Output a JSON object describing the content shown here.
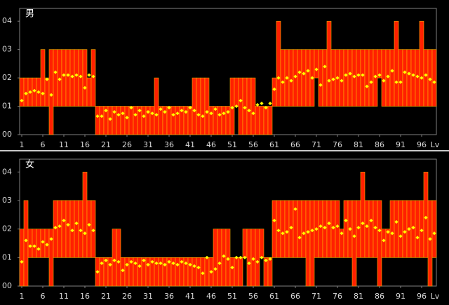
{
  "chart_data": [
    {
      "type": "range_bar",
      "title": "男",
      "x": [
        1,
        2,
        3,
        4,
        5,
        6,
        7,
        8,
        9,
        10,
        11,
        12,
        13,
        14,
        15,
        16,
        17,
        18,
        19,
        20,
        21,
        22,
        23,
        24,
        25,
        26,
        27,
        28,
        29,
        30,
        31,
        32,
        33,
        34,
        35,
        36,
        37,
        38,
        39,
        40,
        41,
        42,
        43,
        44,
        45,
        46,
        47,
        48,
        49,
        50,
        51,
        52,
        53,
        54,
        55,
        56,
        57,
        58,
        59,
        60,
        61,
        62,
        63,
        64,
        65,
        66,
        67,
        68,
        69,
        70,
        71,
        72,
        73,
        74,
        75,
        76,
        77,
        78,
        79,
        80,
        81,
        82,
        83,
        84,
        85,
        86,
        87,
        88,
        89,
        90,
        91,
        92,
        93,
        94,
        95,
        96,
        97,
        98,
        99
      ],
      "low": [
        1,
        1,
        1,
        1,
        1,
        1,
        1,
        0,
        1,
        1,
        1,
        1,
        1,
        1,
        1,
        1,
        1,
        1,
        0,
        0,
        0,
        0,
        0,
        0,
        0,
        0,
        0,
        0,
        0,
        0,
        0,
        0,
        0,
        0,
        0,
        0,
        0,
        0,
        0,
        0,
        0,
        0,
        0,
        0,
        0,
        0,
        0,
        0,
        0,
        0,
        0,
        1,
        0,
        0,
        0,
        0,
        0,
        0,
        0,
        0,
        1,
        1,
        1,
        1,
        1,
        1,
        1,
        1,
        1,
        1,
        2,
        1,
        1,
        1,
        1,
        1,
        1,
        1,
        1,
        1,
        1,
        1,
        1,
        1,
        1,
        2,
        1,
        1,
        1,
        1,
        1,
        1,
        1,
        1,
        1,
        1,
        1,
        1,
        1
      ],
      "high": [
        2,
        2,
        2,
        2,
        2,
        3,
        2,
        3,
        3,
        3,
        3,
        3,
        3,
        3,
        3,
        3,
        2,
        3,
        1,
        1,
        1,
        1,
        1,
        1,
        1,
        1,
        1,
        1,
        1,
        1,
        1,
        1,
        2,
        1,
        1,
        1,
        1,
        1,
        1,
        1,
        1,
        2,
        2,
        2,
        2,
        1,
        1,
        1,
        1,
        1,
        2,
        2,
        2,
        2,
        2,
        2,
        1,
        1,
        1,
        1,
        2,
        4,
        3,
        3,
        3,
        3,
        3,
        3,
        3,
        3,
        3,
        3,
        3,
        4,
        3,
        3,
        3,
        3,
        3,
        3,
        3,
        3,
        3,
        3,
        3,
        3,
        3,
        3,
        3,
        4,
        3,
        3,
        3,
        3,
        3,
        4,
        3,
        3,
        3
      ],
      "average": [
        1.2,
        1.45,
        1.5,
        1.55,
        1.5,
        1.45,
        1.95,
        1.4,
        2.2,
        1.95,
        2.1,
        2.1,
        2.05,
        2.1,
        2.05,
        1.65,
        2.1,
        2.05,
        0.65,
        0.65,
        0.85,
        0.55,
        0.8,
        0.7,
        0.75,
        0.6,
        0.95,
        0.7,
        0.85,
        0.65,
        0.8,
        0.75,
        0.7,
        0.9,
        0.8,
        0.95,
        0.7,
        0.75,
        0.85,
        0.8,
        0.95,
        0.85,
        0.7,
        0.65,
        0.8,
        0.75,
        0.9,
        0.7,
        0.75,
        0.8,
        0.95,
        1.0,
        1.2,
        0.95,
        0.85,
        0.75,
        1.05,
        1.1,
        0.95,
        1.1,
        1.6,
        2.0,
        1.85,
        2.0,
        1.9,
        2.05,
        2.2,
        2.15,
        2.25,
        2.0,
        2.3,
        1.75,
        2.4,
        1.9,
        1.95,
        2.0,
        1.9,
        2.1,
        2.15,
        2.05,
        2.1,
        2.1,
        1.7,
        1.85,
        2.05,
        2.1,
        1.9,
        2.05,
        2.25,
        1.85,
        1.85,
        2.2,
        2.15,
        2.1,
        2.05,
        2.0,
        2.1,
        1.95,
        1.85
      ],
      "bar_color": "#ff2000",
      "stripe_color": "#ffb000",
      "average_color": "#ffff00",
      "xlim": [
        0.5,
        99.5
      ],
      "xticks": [
        1,
        6,
        11,
        16,
        21,
        26,
        31,
        36,
        41,
        46,
        51,
        56,
        61,
        66,
        71,
        76,
        81,
        86,
        91,
        96
      ],
      "x_label": "Lv",
      "ylim": [
        0,
        4.45
      ],
      "yticks": [
        {
          "value": 0,
          "label": "00"
        },
        {
          "value": 1,
          "label": "01"
        },
        {
          "value": 2,
          "label": "02"
        },
        {
          "value": 3,
          "label": "03"
        },
        {
          "value": 4,
          "label": "04"
        }
      ]
    },
    {
      "type": "range_bar",
      "title": "女",
      "x": [
        1,
        2,
        3,
        4,
        5,
        6,
        7,
        8,
        9,
        10,
        11,
        12,
        13,
        14,
        15,
        16,
        17,
        18,
        19,
        20,
        21,
        22,
        23,
        24,
        25,
        26,
        27,
        28,
        29,
        30,
        31,
        32,
        33,
        34,
        35,
        36,
        37,
        38,
        39,
        40,
        41,
        42,
        43,
        44,
        45,
        46,
        47,
        48,
        49,
        50,
        51,
        52,
        53,
        54,
        55,
        56,
        57,
        58,
        59,
        60,
        61,
        62,
        63,
        64,
        65,
        66,
        67,
        68,
        69,
        70,
        71,
        72,
        73,
        74,
        75,
        76,
        77,
        78,
        79,
        80,
        81,
        82,
        83,
        84,
        85,
        86,
        87,
        88,
        89,
        90,
        91,
        92,
        93,
        94,
        95,
        96,
        97,
        98,
        99
      ],
      "low": [
        0,
        0,
        1,
        1,
        1,
        1,
        1,
        0,
        1,
        1,
        1,
        1,
        1,
        1,
        1,
        1,
        1,
        1,
        0,
        0,
        0,
        0,
        0,
        0,
        0,
        0,
        0,
        0,
        0,
        0,
        0,
        0,
        0,
        0,
        0,
        0,
        0,
        0,
        0,
        0,
        0,
        0,
        0,
        0,
        0,
        0,
        0,
        0,
        0,
        0,
        0,
        0,
        0,
        1,
        0,
        0,
        0,
        1,
        0,
        0,
        1,
        1,
        1,
        1,
        1,
        1,
        1,
        1,
        0,
        0,
        1,
        1,
        1,
        1,
        1,
        1,
        1,
        1,
        1,
        0,
        1,
        1,
        1,
        1,
        1,
        0,
        1,
        1,
        1,
        1,
        1,
        1,
        1,
        1,
        1,
        1,
        1,
        0,
        1
      ],
      "high": [
        2,
        3,
        2,
        2,
        2,
        2,
        2,
        2,
        3,
        3,
        3,
        3,
        3,
        3,
        3,
        4,
        3,
        3,
        1,
        1,
        1,
        1,
        2,
        2,
        1,
        1,
        1,
        1,
        1,
        1,
        1,
        1,
        1,
        1,
        1,
        1,
        1,
        1,
        1,
        1,
        1,
        1,
        1,
        1,
        1,
        1,
        2,
        2,
        2,
        2,
        1,
        1,
        1,
        2,
        2,
        2,
        2,
        2,
        1,
        1,
        3,
        3,
        3,
        3,
        3,
        3,
        3,
        3,
        3,
        3,
        3,
        3,
        3,
        3,
        3,
        3,
        2,
        3,
        3,
        3,
        3,
        4,
        3,
        3,
        3,
        3,
        2,
        2,
        3,
        3,
        3,
        3,
        3,
        3,
        3,
        3,
        4,
        3,
        3
      ],
      "average": [
        0.85,
        1.6,
        1.4,
        1.4,
        1.3,
        1.55,
        1.45,
        1.65,
        2.05,
        2.1,
        2.3,
        2.15,
        1.95,
        2.2,
        1.95,
        1.85,
        2.15,
        1.95,
        0.5,
        0.8,
        0.9,
        0.75,
        0.9,
        0.85,
        0.55,
        0.75,
        0.85,
        0.8,
        0.7,
        0.9,
        0.75,
        0.85,
        0.8,
        0.8,
        0.75,
        0.85,
        0.8,
        0.75,
        0.85,
        0.8,
        0.75,
        0.7,
        0.65,
        0.45,
        1.0,
        0.5,
        0.6,
        0.8,
        1.05,
        0.95,
        0.65,
        1.0,
        1.0,
        1.0,
        0.8,
        0.95,
        0.85,
        1.0,
        0.9,
        0.95,
        2.3,
        1.95,
        1.85,
        1.9,
        2.05,
        2.7,
        1.7,
        1.85,
        1.9,
        1.95,
        2.0,
        2.1,
        2.05,
        2.2,
        2.05,
        2.1,
        1.85,
        2.3,
        2.0,
        1.75,
        2.05,
        2.2,
        2.1,
        2.3,
        2.05,
        1.95,
        1.6,
        1.9,
        1.85,
        2.25,
        1.75,
        1.9,
        2.0,
        2.05,
        1.7,
        1.95,
        2.4,
        1.65,
        1.85
      ],
      "bar_color": "#ff2000",
      "stripe_color": "#ffb000",
      "average_color": "#ffff00",
      "xlim": [
        0.5,
        99.5
      ],
      "xticks": [
        1,
        6,
        11,
        16,
        21,
        26,
        31,
        36,
        41,
        46,
        51,
        56,
        61,
        66,
        71,
        76,
        81,
        86,
        91,
        96
      ],
      "x_label": "Lv",
      "ylim": [
        0,
        4.45
      ],
      "yticks": [
        {
          "value": 0,
          "label": "00"
        },
        {
          "value": 1,
          "label": "01"
        },
        {
          "value": 2,
          "label": "02"
        },
        {
          "value": 3,
          "label": "03"
        },
        {
          "value": 4,
          "label": "04"
        }
      ]
    }
  ]
}
